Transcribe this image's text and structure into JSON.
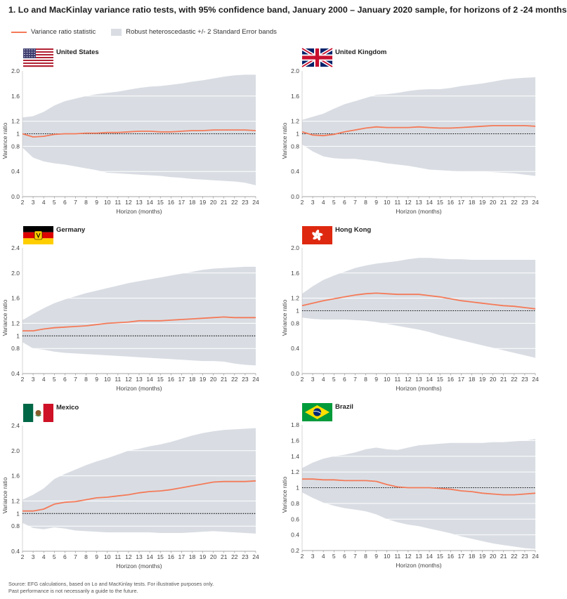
{
  "title": "1. Lo and MacKinlay variance ratio tests, with 95% confidence band, January 2000 – January 2020 sample, for horizons of 2 -24 months",
  "legend": {
    "line_label": "Variance ratio statistic",
    "band_label": "Robust heteroscedastic +/- 2 Standard Error bands"
  },
  "footer": {
    "line1": "Source: EFG calculations, based on Lo and MacKinlay tests. For illustrative purposes only.",
    "line2": "Past performance is not necessarily a guide to the future."
  },
  "colors": {
    "line": "#f47a59",
    "band": "#d9dde3",
    "reference": "#111111",
    "grid": "#ffffff"
  },
  "chart_data": [
    {
      "type": "area",
      "title": "United States",
      "flag": "united-states-flag-icon",
      "xlabel": "Horizon (months)",
      "ylabel": "Variance ratio",
      "x": [
        2,
        3,
        4,
        5,
        6,
        7,
        8,
        9,
        10,
        11,
        12,
        13,
        14,
        15,
        16,
        17,
        18,
        19,
        20,
        21,
        22,
        23,
        24
      ],
      "ylim": [
        0.0,
        2.0
      ],
      "yticks": [
        0.0,
        0.4,
        0.8,
        1.0,
        1.2,
        1.6,
        2.0
      ],
      "ytick_labels": [
        "0.0",
        "0.4",
        "0.8",
        "1",
        "1.2",
        "1.6",
        "2.0"
      ],
      "reference": 1.0,
      "series": [
        {
          "name": "Variance ratio statistic",
          "values": [
            1.0,
            0.95,
            0.96,
            0.99,
            1.0,
            1.0,
            1.01,
            1.01,
            1.02,
            1.02,
            1.03,
            1.04,
            1.04,
            1.03,
            1.03,
            1.04,
            1.05,
            1.05,
            1.06,
            1.06,
            1.06,
            1.06,
            1.05
          ]
        },
        {
          "name": "Upper band",
          "values": [
            1.26,
            1.28,
            1.35,
            1.45,
            1.52,
            1.56,
            1.6,
            1.63,
            1.65,
            1.67,
            1.7,
            1.73,
            1.75,
            1.76,
            1.78,
            1.8,
            1.83,
            1.85,
            1.88,
            1.91,
            1.93,
            1.94,
            1.94
          ]
        },
        {
          "name": "Lower band",
          "values": [
            0.78,
            0.62,
            0.56,
            0.53,
            0.51,
            0.48,
            0.45,
            0.42,
            0.38,
            0.37,
            0.36,
            0.35,
            0.34,
            0.33,
            0.31,
            0.3,
            0.28,
            0.27,
            0.26,
            0.25,
            0.24,
            0.22,
            0.18
          ]
        }
      ]
    },
    {
      "type": "area",
      "title": "United Kingdom",
      "flag": "united-kingdom-flag-icon",
      "xlabel": "Horizon (months)",
      "ylabel": "Variance ratio",
      "x": [
        2,
        3,
        4,
        5,
        6,
        7,
        8,
        9,
        10,
        11,
        12,
        13,
        14,
        15,
        16,
        17,
        18,
        19,
        20,
        21,
        22,
        23,
        24
      ],
      "ylim": [
        0.0,
        2.0
      ],
      "yticks": [
        0.0,
        0.4,
        0.8,
        1.0,
        1.2,
        1.6,
        2.0
      ],
      "ytick_labels": [
        "0.0",
        "0.4",
        "0.8",
        "1",
        "1.2",
        "1.6",
        "2.0"
      ],
      "reference": 1.0,
      "series": [
        {
          "name": "Variance ratio statistic",
          "values": [
            1.03,
            0.98,
            0.97,
            0.99,
            1.03,
            1.06,
            1.09,
            1.11,
            1.1,
            1.1,
            1.1,
            1.11,
            1.1,
            1.09,
            1.09,
            1.1,
            1.11,
            1.12,
            1.13,
            1.13,
            1.13,
            1.13,
            1.12
          ]
        },
        {
          "name": "Upper band",
          "values": [
            1.22,
            1.27,
            1.32,
            1.4,
            1.47,
            1.52,
            1.57,
            1.62,
            1.63,
            1.65,
            1.68,
            1.7,
            1.71,
            1.71,
            1.73,
            1.76,
            1.78,
            1.8,
            1.83,
            1.86,
            1.88,
            1.89,
            1.9
          ]
        },
        {
          "name": "Lower band",
          "values": [
            0.83,
            0.72,
            0.64,
            0.61,
            0.6,
            0.6,
            0.58,
            0.56,
            0.53,
            0.51,
            0.49,
            0.46,
            0.43,
            0.42,
            0.41,
            0.4,
            0.4,
            0.4,
            0.39,
            0.38,
            0.37,
            0.35,
            0.33
          ]
        }
      ]
    },
    {
      "type": "area",
      "title": "Germany",
      "flag": "germany-flag-icon",
      "xlabel": "Horizon (months)",
      "ylabel": "Variance ratio",
      "x": [
        2,
        3,
        4,
        5,
        6,
        7,
        8,
        9,
        10,
        11,
        12,
        13,
        14,
        15,
        16,
        17,
        18,
        19,
        20,
        21,
        22,
        23,
        24
      ],
      "ylim": [
        0.4,
        2.4
      ],
      "yticks": [
        0.4,
        0.8,
        1.0,
        1.2,
        1.6,
        2.0,
        2.4
      ],
      "ytick_labels": [
        "0.4",
        "0.8",
        "1",
        "1.2",
        "1.6",
        "2.0",
        "2.4"
      ],
      "reference": 1.0,
      "series": [
        {
          "name": "Variance ratio statistic",
          "values": [
            1.08,
            1.08,
            1.11,
            1.13,
            1.14,
            1.15,
            1.16,
            1.18,
            1.2,
            1.21,
            1.22,
            1.24,
            1.24,
            1.24,
            1.25,
            1.26,
            1.27,
            1.28,
            1.29,
            1.3,
            1.29,
            1.29,
            1.29
          ]
        },
        {
          "name": "Upper band",
          "values": [
            1.25,
            1.35,
            1.44,
            1.52,
            1.58,
            1.63,
            1.68,
            1.72,
            1.76,
            1.8,
            1.84,
            1.87,
            1.9,
            1.93,
            1.96,
            1.99,
            2.02,
            2.05,
            2.07,
            2.08,
            2.09,
            2.1,
            2.1
          ]
        },
        {
          "name": "Lower band",
          "values": [
            0.9,
            0.8,
            0.78,
            0.75,
            0.73,
            0.72,
            0.71,
            0.7,
            0.69,
            0.68,
            0.67,
            0.66,
            0.65,
            0.64,
            0.63,
            0.62,
            0.61,
            0.6,
            0.6,
            0.59,
            0.56,
            0.54,
            0.53
          ]
        }
      ]
    },
    {
      "type": "area",
      "title": "Hong Kong",
      "flag": "hong-kong-flag-icon",
      "xlabel": "Horizon (months)",
      "ylabel": "Variance ratio",
      "x": [
        2,
        3,
        4,
        5,
        6,
        7,
        8,
        9,
        10,
        11,
        12,
        13,
        14,
        15,
        16,
        17,
        18,
        19,
        20,
        21,
        22,
        23,
        24
      ],
      "ylim": [
        0.0,
        2.0
      ],
      "yticks": [
        0.0,
        0.4,
        0.8,
        1.0,
        1.2,
        1.6,
        2.0
      ],
      "ytick_labels": [
        "0.0",
        "0.4",
        "0.8",
        "1",
        "1.2",
        "1.6",
        "2.0"
      ],
      "reference": 1.0,
      "series": [
        {
          "name": "Variance ratio statistic",
          "values": [
            1.08,
            1.12,
            1.16,
            1.19,
            1.22,
            1.25,
            1.27,
            1.28,
            1.27,
            1.26,
            1.26,
            1.26,
            1.24,
            1.22,
            1.19,
            1.16,
            1.14,
            1.12,
            1.1,
            1.08,
            1.07,
            1.05,
            1.03
          ]
        },
        {
          "name": "Upper band",
          "values": [
            1.27,
            1.39,
            1.49,
            1.56,
            1.62,
            1.68,
            1.72,
            1.75,
            1.77,
            1.79,
            1.82,
            1.84,
            1.84,
            1.83,
            1.82,
            1.82,
            1.81,
            1.81,
            1.81,
            1.81,
            1.81,
            1.81,
            1.81
          ]
        },
        {
          "name": "Lower band",
          "values": [
            0.89,
            0.87,
            0.86,
            0.86,
            0.86,
            0.85,
            0.84,
            0.82,
            0.79,
            0.76,
            0.73,
            0.7,
            0.66,
            0.61,
            0.57,
            0.53,
            0.49,
            0.45,
            0.41,
            0.37,
            0.33,
            0.29,
            0.25
          ]
        }
      ]
    },
    {
      "type": "area",
      "title": "Mexico",
      "flag": "mexico-flag-icon",
      "xlabel": "Horizon (months)",
      "ylabel": "Variance ratio",
      "x": [
        2,
        3,
        4,
        5,
        6,
        7,
        8,
        9,
        10,
        11,
        12,
        13,
        14,
        15,
        16,
        17,
        18,
        19,
        20,
        21,
        22,
        23,
        24
      ],
      "ylim": [
        0.4,
        2.4
      ],
      "yticks": [
        0.4,
        0.8,
        1.0,
        1.2,
        1.6,
        2.0,
        2.4
      ],
      "ytick_labels": [
        "0.4",
        "0.8",
        "1",
        "1.2",
        "1.6",
        "2.0",
        "2.4"
      ],
      "reference": 1.0,
      "series": [
        {
          "name": "Variance ratio statistic",
          "values": [
            1.04,
            1.04,
            1.07,
            1.15,
            1.18,
            1.19,
            1.22,
            1.25,
            1.26,
            1.28,
            1.3,
            1.33,
            1.35,
            1.36,
            1.38,
            1.41,
            1.44,
            1.47,
            1.5,
            1.51,
            1.51,
            1.51,
            1.52
          ]
        },
        {
          "name": "Upper band",
          "values": [
            1.22,
            1.3,
            1.4,
            1.55,
            1.63,
            1.7,
            1.77,
            1.83,
            1.88,
            1.94,
            2.0,
            2.03,
            2.07,
            2.1,
            2.14,
            2.19,
            2.24,
            2.28,
            2.31,
            2.33,
            2.34,
            2.35,
            2.36
          ]
        },
        {
          "name": "Lower band",
          "values": [
            0.85,
            0.77,
            0.75,
            0.78,
            0.76,
            0.73,
            0.72,
            0.71,
            0.7,
            0.7,
            0.7,
            0.7,
            0.7,
            0.69,
            0.69,
            0.69,
            0.7,
            0.71,
            0.72,
            0.71,
            0.7,
            0.69,
            0.68
          ]
        }
      ]
    },
    {
      "type": "area",
      "title": "Brazil",
      "flag": "brazil-flag-icon",
      "xlabel": "Horizon (months)",
      "ylabel": "Variance ratio",
      "x": [
        2,
        3,
        4,
        5,
        6,
        7,
        8,
        9,
        10,
        11,
        12,
        13,
        14,
        15,
        16,
        17,
        18,
        19,
        20,
        21,
        22,
        23,
        24
      ],
      "ylim": [
        0.2,
        1.8
      ],
      "yticks": [
        0.2,
        0.4,
        0.6,
        0.8,
        1.0,
        1.2,
        1.4,
        1.6,
        1.8
      ],
      "ytick_labels": [
        "0.2",
        "0.4",
        "0.6",
        "0.8",
        "1",
        "1.2",
        "1.4",
        "1.6",
        "1.8"
      ],
      "reference": 1.0,
      "series": [
        {
          "name": "Variance ratio statistic",
          "values": [
            1.11,
            1.11,
            1.1,
            1.1,
            1.09,
            1.09,
            1.09,
            1.08,
            1.04,
            1.01,
            1.0,
            1.0,
            1.0,
            0.99,
            0.98,
            0.96,
            0.95,
            0.93,
            0.92,
            0.91,
            0.91,
            0.92,
            0.93
          ]
        },
        {
          "name": "Upper band",
          "values": [
            1.25,
            1.32,
            1.37,
            1.4,
            1.42,
            1.45,
            1.49,
            1.51,
            1.49,
            1.48,
            1.51,
            1.54,
            1.55,
            1.56,
            1.57,
            1.57,
            1.57,
            1.57,
            1.58,
            1.58,
            1.59,
            1.6,
            1.62
          ]
        },
        {
          "name": "Lower band",
          "values": [
            0.94,
            0.87,
            0.81,
            0.77,
            0.74,
            0.72,
            0.7,
            0.66,
            0.6,
            0.56,
            0.53,
            0.51,
            0.48,
            0.45,
            0.42,
            0.38,
            0.35,
            0.32,
            0.29,
            0.27,
            0.25,
            0.23,
            0.22
          ]
        }
      ]
    }
  ]
}
